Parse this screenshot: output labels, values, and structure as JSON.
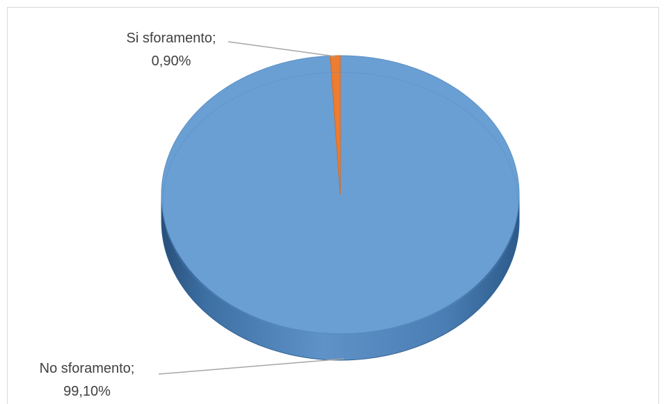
{
  "chart_data": {
    "type": "pie",
    "style": "3d",
    "title": "",
    "slices": [
      {
        "label": "No sforamento",
        "value": 99.1,
        "value_text": "99,10%",
        "color": "#6a9fd4"
      },
      {
        "label": "Si sforamento",
        "value": 0.9,
        "value_text": "0,90%",
        "color": "#ed7d31"
      }
    ],
    "legend": "none",
    "data_labels": "outside with leader lines"
  }
}
